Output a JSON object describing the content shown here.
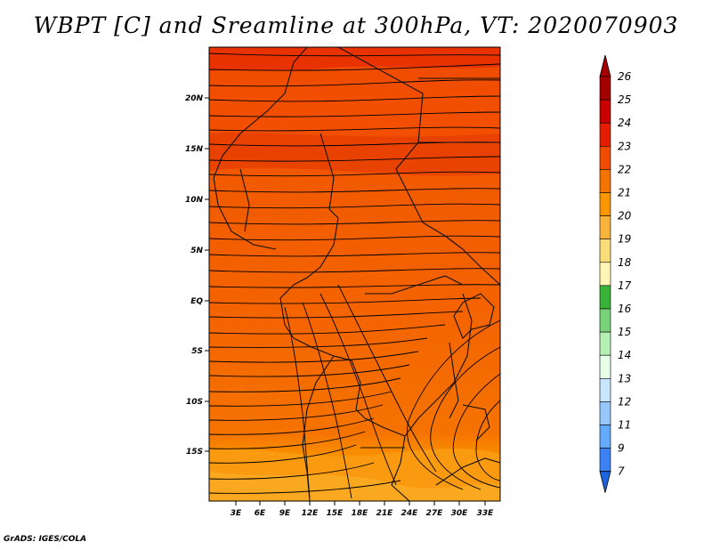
{
  "title": "WBPT [C] and Sreamline at 300hPa, VT: 2020070903",
  "footer": "GrADS: IGES/COLA",
  "map": {
    "lat_labels": [
      "20N",
      "15N",
      "10N",
      "5N",
      "EQ",
      "5S",
      "10S",
      "15S"
    ],
    "lon_labels": [
      "3E",
      "6E",
      "9E",
      "12E",
      "15E",
      "18E",
      "21E",
      "24E",
      "27E",
      "30E",
      "33E"
    ]
  },
  "colorbar": {
    "levels": [
      "26",
      "25",
      "24",
      "23",
      "22",
      "21",
      "20",
      "19",
      "18",
      "17",
      "16",
      "15",
      "14",
      "13",
      "12",
      "11",
      "9",
      "7"
    ],
    "colors": [
      "#a50000",
      "#c80000",
      "#e61e00",
      "#f04b00",
      "#f57300",
      "#fa9600",
      "#fab43c",
      "#fadc78",
      "#fff5b4",
      "#37b437",
      "#78d278",
      "#b4f0b4",
      "#e6ffe6",
      "#c8e6ff",
      "#96c8ff",
      "#64aaff",
      "#3c82f5",
      "#1e64dc"
    ]
  }
}
